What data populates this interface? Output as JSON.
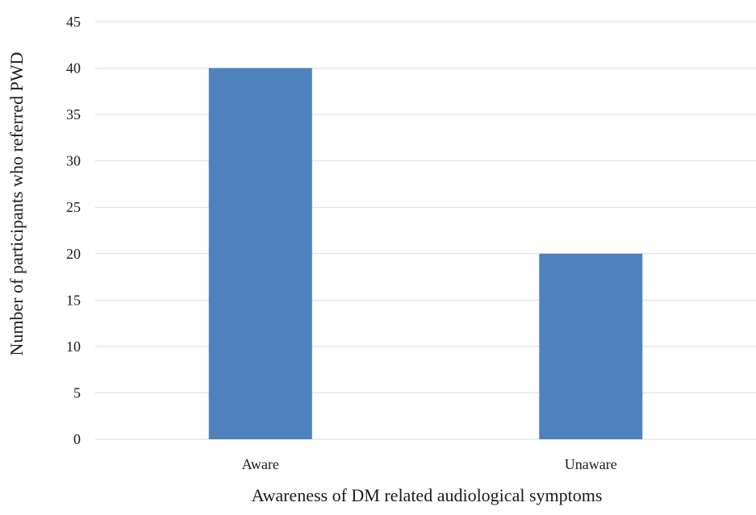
{
  "chart_data": {
    "type": "bar",
    "categories": [
      "Aware",
      "Unaware"
    ],
    "values": [
      40,
      20
    ],
    "xlabel": "Awareness of DM related audiological symptoms",
    "ylabel": "Number of participants who referred PWD",
    "ylim": [
      0,
      45
    ],
    "yticks": [
      0,
      5,
      10,
      15,
      20,
      25,
      30,
      35,
      40,
      45
    ],
    "grid": true,
    "legend": "none",
    "bar_color": "#4f81bd"
  }
}
